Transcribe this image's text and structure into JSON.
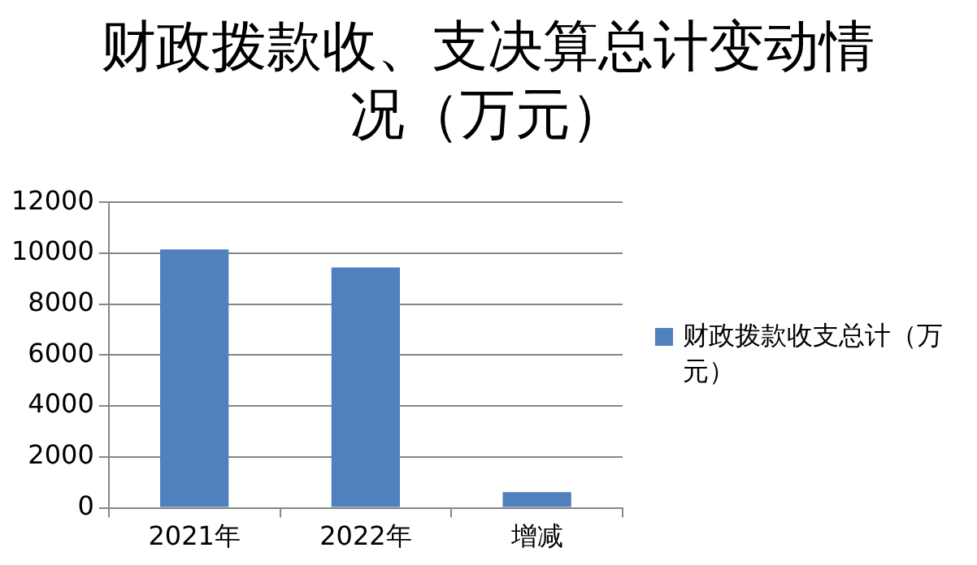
{
  "chart_data": {
    "type": "bar",
    "title": "财政拨款收、支决算总计变动情况（万元）",
    "categories": [
      "2021年",
      "2022年",
      "增减"
    ],
    "series": [
      {
        "name": "财政拨款收支总计（万元）",
        "color": "#4f81bd",
        "values": [
          10150,
          9440,
          620
        ]
      }
    ],
    "ylim": [
      0,
      12000
    ],
    "yticks": [
      0,
      2000,
      4000,
      6000,
      8000,
      10000,
      12000
    ],
    "grid": "y",
    "legend": "right"
  }
}
